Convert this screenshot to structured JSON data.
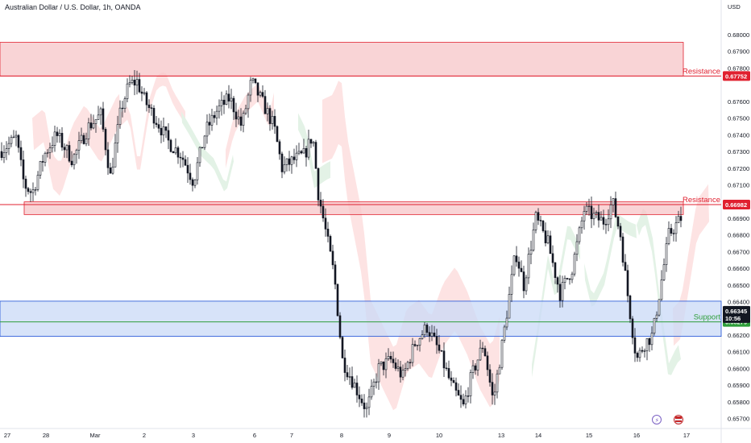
{
  "title": "Australian Dollar / U.S. Dollar, 1h, OANDA",
  "colors": {
    "candle": "#131722",
    "resistance_fill": "#f7c6c8",
    "resistance_line": "#e0202f",
    "support_fill": "#c9daf7",
    "support_line": "#1c4fd6",
    "support_mid_line": "#2e9e3a",
    "cloud_bear": "#fde3e3",
    "cloud_bull": "#e3f2e6",
    "price_badge": "#131722",
    "support_badge": "#2e9e3a",
    "resistance_badge": "#e0202f"
  },
  "chart_data": {
    "type": "candlestick",
    "symbol": "AUDUSD",
    "timeframe": "1h",
    "currency": "USD",
    "ylim": [
      0.6564,
      0.6814
    ],
    "y_ticks": [
      "0.68000",
      "0.67900",
      "0.67800",
      "0.67600",
      "0.67500",
      "0.67400",
      "0.67300",
      "0.67200",
      "0.67100",
      "0.66900",
      "0.66800",
      "0.66700",
      "0.66600",
      "0.66500",
      "0.66400",
      "0.66200",
      "0.66100",
      "0.66000",
      "0.65900",
      "0.65800",
      "0.65700"
    ],
    "x_ticks": [
      "27",
      "28",
      "Mar",
      "2",
      "3",
      "6",
      "7",
      "8",
      "9",
      "10",
      "13",
      "14",
      "15",
      "16",
      "17"
    ],
    "zones": [
      {
        "label": "Resistance",
        "from": 0.67752,
        "to": 0.67954,
        "line": 0.67752,
        "badge": "0.67752"
      },
      {
        "label": "Resistance",
        "from": 0.66922,
        "to": 0.66998,
        "line": 0.66982,
        "badge": "0.66982"
      },
      {
        "label": "Support",
        "from": 0.66192,
        "to": 0.66403,
        "line": 0.66279,
        "badge": "0.66279"
      }
    ],
    "last_price": "0.66345",
    "countdown": "10:56",
    "price_path": [
      [
        0,
        0.673
      ],
      [
        20,
        0.6738
      ],
      [
        30,
        0.671
      ],
      [
        40,
        0.6705
      ],
      [
        55,
        0.6728
      ],
      [
        70,
        0.674
      ],
      [
        90,
        0.6725
      ],
      [
        110,
        0.6745
      ],
      [
        125,
        0.6752
      ],
      [
        137,
        0.6715
      ],
      [
        150,
        0.6755
      ],
      [
        160,
        0.677
      ],
      [
        170,
        0.6772
      ],
      [
        180,
        0.676
      ],
      [
        195,
        0.6748
      ],
      [
        210,
        0.6735
      ],
      [
        225,
        0.6728
      ],
      [
        240,
        0.6712
      ],
      [
        255,
        0.6742
      ],
      [
        270,
        0.6755
      ],
      [
        285,
        0.6762
      ],
      [
        300,
        0.6745
      ],
      [
        312,
        0.6772
      ],
      [
        325,
        0.676
      ],
      [
        340,
        0.6745
      ],
      [
        350,
        0.672
      ],
      [
        365,
        0.6725
      ],
      [
        378,
        0.6728
      ],
      [
        388,
        0.674
      ],
      [
        395,
        0.6705
      ],
      [
        405,
        0.668
      ],
      [
        415,
        0.6655
      ],
      [
        425,
        0.6605
      ],
      [
        440,
        0.659
      ],
      [
        455,
        0.6575
      ],
      [
        470,
        0.66
      ],
      [
        485,
        0.6605
      ],
      [
        500,
        0.6595
      ],
      [
        515,
        0.6615
      ],
      [
        530,
        0.6625
      ],
      [
        545,
        0.661
      ],
      [
        560,
        0.659
      ],
      [
        575,
        0.6577
      ],
      [
        585,
        0.6595
      ],
      [
        600,
        0.6615
      ],
      [
        612,
        0.658
      ],
      [
        625,
        0.662
      ],
      [
        640,
        0.667
      ],
      [
        650,
        0.665
      ],
      [
        665,
        0.669
      ],
      [
        680,
        0.6675
      ],
      [
        695,
        0.6645
      ],
      [
        710,
        0.666
      ],
      [
        725,
        0.6695
      ],
      [
        740,
        0.669
      ],
      [
        750,
        0.6688
      ],
      [
        760,
        0.67
      ],
      [
        770,
        0.668
      ],
      [
        780,
        0.664
      ],
      [
        790,
        0.6605
      ],
      [
        800,
        0.6615
      ],
      [
        810,
        0.662
      ],
      [
        820,
        0.665
      ],
      [
        830,
        0.668
      ],
      [
        845,
        0.669
      ]
    ]
  }
}
